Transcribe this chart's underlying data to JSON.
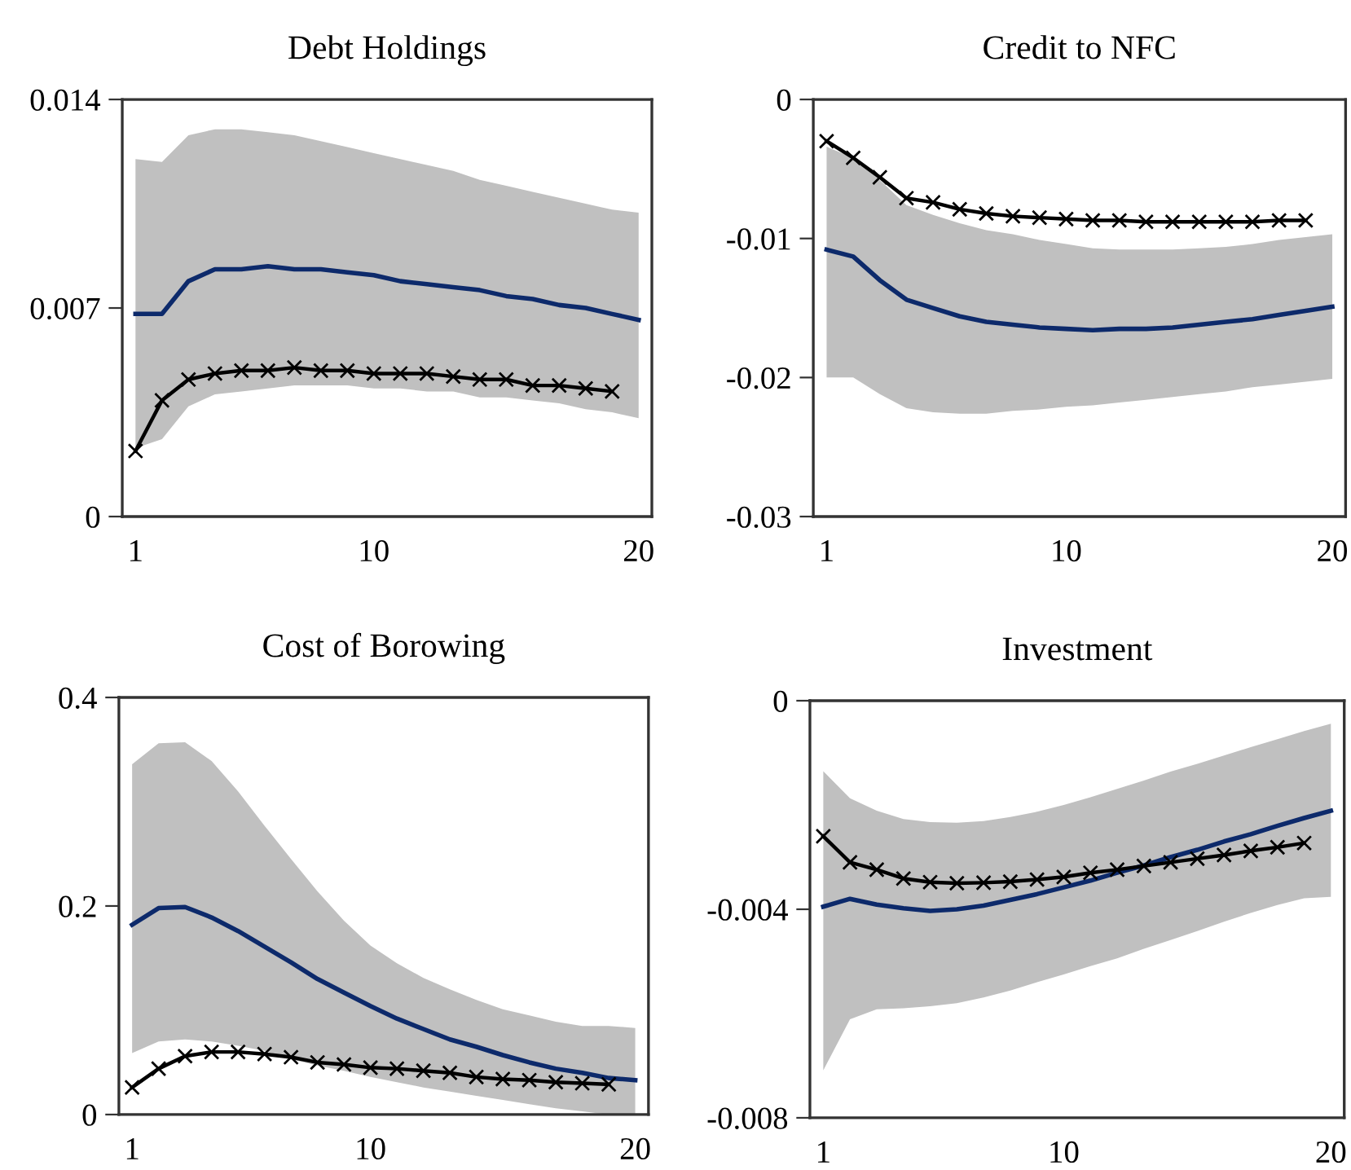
{
  "chart_data": [
    {
      "type": "line",
      "title": "Debt Holdings",
      "x": [
        1,
        2,
        3,
        4,
        5,
        6,
        7,
        8,
        9,
        10,
        11,
        12,
        13,
        14,
        15,
        16,
        17,
        18,
        19,
        20
      ],
      "xlim": [
        0.5,
        20.5
      ],
      "xticks": [
        1,
        10,
        20
      ],
      "ylim": [
        0,
        0.014
      ],
      "yticks": [
        0,
        0.007,
        0.014
      ],
      "grid": false,
      "legend": false,
      "series": [
        {
          "color": "#0d2a6b",
          "marker": "none",
          "values": [
            0.0068,
            0.0068,
            0.0079,
            0.0083,
            0.0083,
            0.0084,
            0.0083,
            0.0083,
            0.0082,
            0.0081,
            0.0079,
            0.0078,
            0.0077,
            0.0076,
            0.0074,
            0.0073,
            0.0071,
            0.007,
            0.0068,
            0.0066
          ],
          "lower": [
            0.0023,
            0.0026,
            0.0037,
            0.0041,
            0.0042,
            0.0043,
            0.0044,
            0.0044,
            0.0044,
            0.0043,
            0.0043,
            0.0042,
            0.0042,
            0.004,
            0.004,
            0.0039,
            0.0038,
            0.0036,
            0.0035,
            0.0033
          ],
          "upper": [
            0.012,
            0.0119,
            0.0128,
            0.013,
            0.013,
            0.0129,
            0.0128,
            0.0126,
            0.0124,
            0.0122,
            0.012,
            0.0118,
            0.0116,
            0.0113,
            0.0111,
            0.0109,
            0.0107,
            0.0105,
            0.0103,
            0.0102
          ]
        },
        {
          "color": "#000000",
          "marker": "cross",
          "x": [
            1,
            2,
            3,
            4,
            5,
            6,
            7,
            8,
            9,
            10,
            11,
            12,
            13,
            14,
            15,
            16,
            17,
            18,
            19
          ],
          "values": [
            0.0022,
            0.0039,
            0.0046,
            0.0048,
            0.0049,
            0.0049,
            0.005,
            0.0049,
            0.0049,
            0.0048,
            0.0048,
            0.0048,
            0.0047,
            0.0046,
            0.0046,
            0.0044,
            0.0044,
            0.0043,
            0.0042
          ]
        }
      ]
    },
    {
      "type": "line",
      "title": "Credit to NFC",
      "x": [
        1,
        2,
        3,
        4,
        5,
        6,
        7,
        8,
        9,
        10,
        11,
        12,
        13,
        14,
        15,
        16,
        17,
        18,
        19,
        20
      ],
      "xlim": [
        0.5,
        20.5
      ],
      "xticks": [
        1,
        10,
        20
      ],
      "ylim": [
        -0.03,
        0
      ],
      "yticks": [
        -0.03,
        -0.02,
        -0.01,
        0
      ],
      "grid": false,
      "legend": false,
      "series": [
        {
          "color": "#0d2a6b",
          "marker": "none",
          "values": [
            -0.0108,
            -0.0113,
            -0.013,
            -0.0144,
            -0.015,
            -0.0156,
            -0.016,
            -0.0162,
            -0.0164,
            -0.0165,
            -0.0166,
            -0.0165,
            -0.0165,
            -0.0164,
            -0.0162,
            -0.016,
            -0.0158,
            -0.0155,
            -0.0152,
            -0.0149
          ],
          "lower": [
            -0.02,
            -0.02,
            -0.0212,
            -0.0222,
            -0.0225,
            -0.0226,
            -0.0226,
            -0.0224,
            -0.0223,
            -0.0221,
            -0.022,
            -0.0218,
            -0.0216,
            -0.0214,
            -0.0212,
            -0.021,
            -0.0207,
            -0.0205,
            -0.0203,
            -0.0201
          ],
          "upper": [
            -0.0034,
            -0.0042,
            -0.0058,
            -0.0076,
            -0.0083,
            -0.0089,
            -0.0094,
            -0.0097,
            -0.0101,
            -0.0104,
            -0.0107,
            -0.0108,
            -0.0108,
            -0.0108,
            -0.0107,
            -0.0106,
            -0.0104,
            -0.0101,
            -0.0099,
            -0.0097
          ]
        },
        {
          "color": "#000000",
          "marker": "cross",
          "x": [
            1,
            2,
            3,
            4,
            5,
            6,
            7,
            8,
            9,
            10,
            11,
            12,
            13,
            14,
            15,
            16,
            17,
            18,
            19
          ],
          "values": [
            -0.003,
            -0.0042,
            -0.0056,
            -0.0071,
            -0.0074,
            -0.0079,
            -0.0082,
            -0.0084,
            -0.0085,
            -0.0086,
            -0.0087,
            -0.0087,
            -0.0088,
            -0.0088,
            -0.0088,
            -0.0088,
            -0.0088,
            -0.0087,
            -0.0087
          ]
        }
      ]
    },
    {
      "type": "line",
      "title": "Cost of Borowing",
      "x": [
        1,
        2,
        3,
        4,
        5,
        6,
        7,
        8,
        9,
        10,
        11,
        12,
        13,
        14,
        15,
        16,
        17,
        18,
        19,
        20
      ],
      "xlim": [
        0.5,
        20.5
      ],
      "xticks": [
        1,
        10,
        20
      ],
      "ylim": [
        0,
        0.4
      ],
      "yticks": [
        0,
        0.2,
        0.4
      ],
      "grid": false,
      "legend": false,
      "series": [
        {
          "color": "#0d2a6b",
          "marker": "none",
          "values": [
            0.182,
            0.198,
            0.199,
            0.189,
            0.176,
            0.161,
            0.146,
            0.13,
            0.117,
            0.104,
            0.092,
            0.082,
            0.072,
            0.065,
            0.057,
            0.05,
            0.044,
            0.04,
            0.035,
            0.033
          ],
          "lower": [
            0.059,
            0.07,
            0.072,
            0.07,
            0.066,
            0.061,
            0.053,
            0.047,
            0.042,
            0.036,
            0.031,
            0.026,
            0.022,
            0.018,
            0.014,
            0.01,
            0.006,
            0.003,
            0.0,
            0.0
          ],
          "upper": [
            0.336,
            0.356,
            0.357,
            0.339,
            0.31,
            0.277,
            0.245,
            0.214,
            0.186,
            0.162,
            0.145,
            0.131,
            0.12,
            0.11,
            0.101,
            0.095,
            0.089,
            0.085,
            0.085,
            0.083
          ]
        },
        {
          "color": "#000000",
          "marker": "cross",
          "x": [
            1,
            2,
            3,
            4,
            5,
            6,
            7,
            8,
            9,
            10,
            11,
            12,
            13,
            14,
            15,
            16,
            17,
            18,
            19
          ],
          "values": [
            0.026,
            0.044,
            0.056,
            0.06,
            0.06,
            0.058,
            0.055,
            0.05,
            0.048,
            0.045,
            0.044,
            0.042,
            0.04,
            0.036,
            0.034,
            0.033,
            0.031,
            0.03,
            0.029
          ]
        }
      ]
    },
    {
      "type": "line",
      "title": "Investment",
      "x": [
        1,
        2,
        3,
        4,
        5,
        6,
        7,
        8,
        9,
        10,
        11,
        12,
        13,
        14,
        15,
        16,
        17,
        18,
        19,
        20
      ],
      "xlim": [
        0.5,
        20.5
      ],
      "xticks": [
        1,
        10,
        20
      ],
      "ylim": [
        -0.008,
        0
      ],
      "yticks": [
        -0.008,
        -0.004,
        0
      ],
      "grid": false,
      "legend": false,
      "series": [
        {
          "color": "#0d2a6b",
          "marker": "none",
          "values": [
            -0.00395,
            -0.0038,
            -0.00391,
            -0.00398,
            -0.00403,
            -0.004,
            -0.00393,
            -0.00382,
            -0.00371,
            -0.00358,
            -0.00345,
            -0.0033,
            -0.00316,
            -0.003,
            -0.00286,
            -0.0027,
            -0.00256,
            -0.0024,
            -0.00225,
            -0.00211
          ],
          "lower": [
            -0.00709,
            -0.00611,
            -0.00592,
            -0.0059,
            -0.00586,
            -0.0058,
            -0.00569,
            -0.00556,
            -0.0054,
            -0.00525,
            -0.00509,
            -0.00494,
            -0.00476,
            -0.00459,
            -0.00442,
            -0.00424,
            -0.00407,
            -0.00392,
            -0.00379,
            -0.00376
          ],
          "upper": [
            -0.00135,
            -0.00187,
            -0.00211,
            -0.00227,
            -0.00233,
            -0.00234,
            -0.00231,
            -0.00223,
            -0.00213,
            -0.002,
            -0.00185,
            -0.00169,
            -0.00153,
            -0.00136,
            -0.00121,
            -0.00105,
            -0.00089,
            -0.00074,
            -0.00058,
            -0.00044
          ]
        },
        {
          "color": "#000000",
          "marker": "cross",
          "x": [
            1,
            2,
            3,
            4,
            5,
            6,
            7,
            8,
            9,
            10,
            11,
            12,
            13,
            14,
            15,
            16,
            17,
            18,
            19
          ],
          "values": [
            -0.0026,
            -0.0031,
            -0.00324,
            -0.00341,
            -0.00348,
            -0.0035,
            -0.00349,
            -0.00347,
            -0.00343,
            -0.00338,
            -0.0033,
            -0.00324,
            -0.00317,
            -0.0031,
            -0.00303,
            -0.00296,
            -0.00288,
            -0.00281,
            -0.00273
          ]
        }
      ]
    }
  ]
}
